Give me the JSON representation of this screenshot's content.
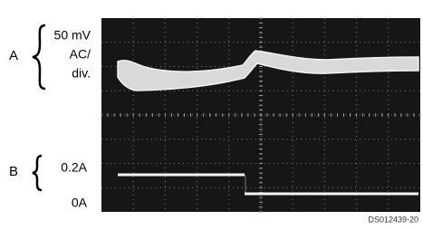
{
  "channel_a": {
    "label": "A",
    "scale_lines": [
      "50 mV",
      "AC/",
      "div."
    ]
  },
  "channel_b": {
    "label": "B",
    "levels": [
      "0.2A",
      "0A"
    ]
  },
  "figure_id": "DS012439-20"
}
